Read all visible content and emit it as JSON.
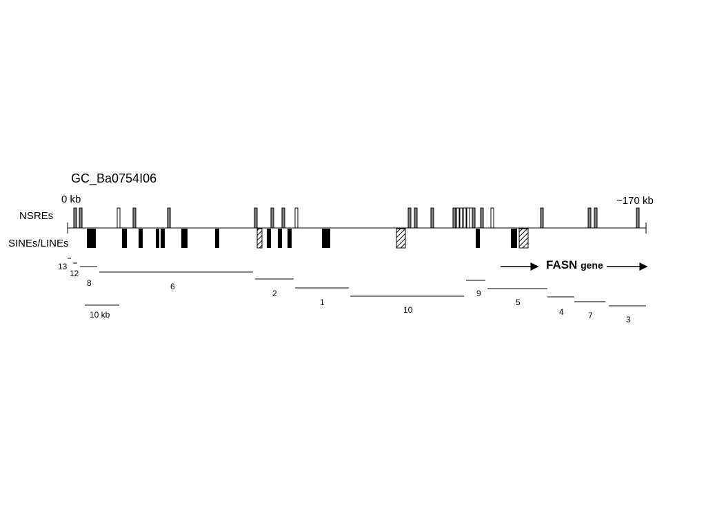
{
  "title": "GC_Ba0754I06",
  "map": {
    "start_label": "0 kb",
    "end_label": "~170 kb",
    "nsre_track_label": "NSREs",
    "sine_track_label": "SINEs/LINEs"
  },
  "gene": {
    "name": "FASN",
    "suffix": "gene"
  },
  "scale_bar": {
    "label": "10 kb"
  },
  "colors": {
    "nsre_filled": "#808080",
    "nsre_open": "#ffffff",
    "sine_solid": "#000000",
    "outline": "#000000"
  },
  "segments": [
    {
      "label": "13"
    },
    {
      "label": "12"
    },
    {
      "label": "8"
    },
    {
      "label": "6"
    },
    {
      "label": "2"
    },
    {
      "label": "1"
    },
    {
      "label": "10"
    },
    {
      "label": "9"
    },
    {
      "label": "5"
    },
    {
      "label": "4"
    },
    {
      "label": "7"
    },
    {
      "label": "3"
    }
  ]
}
